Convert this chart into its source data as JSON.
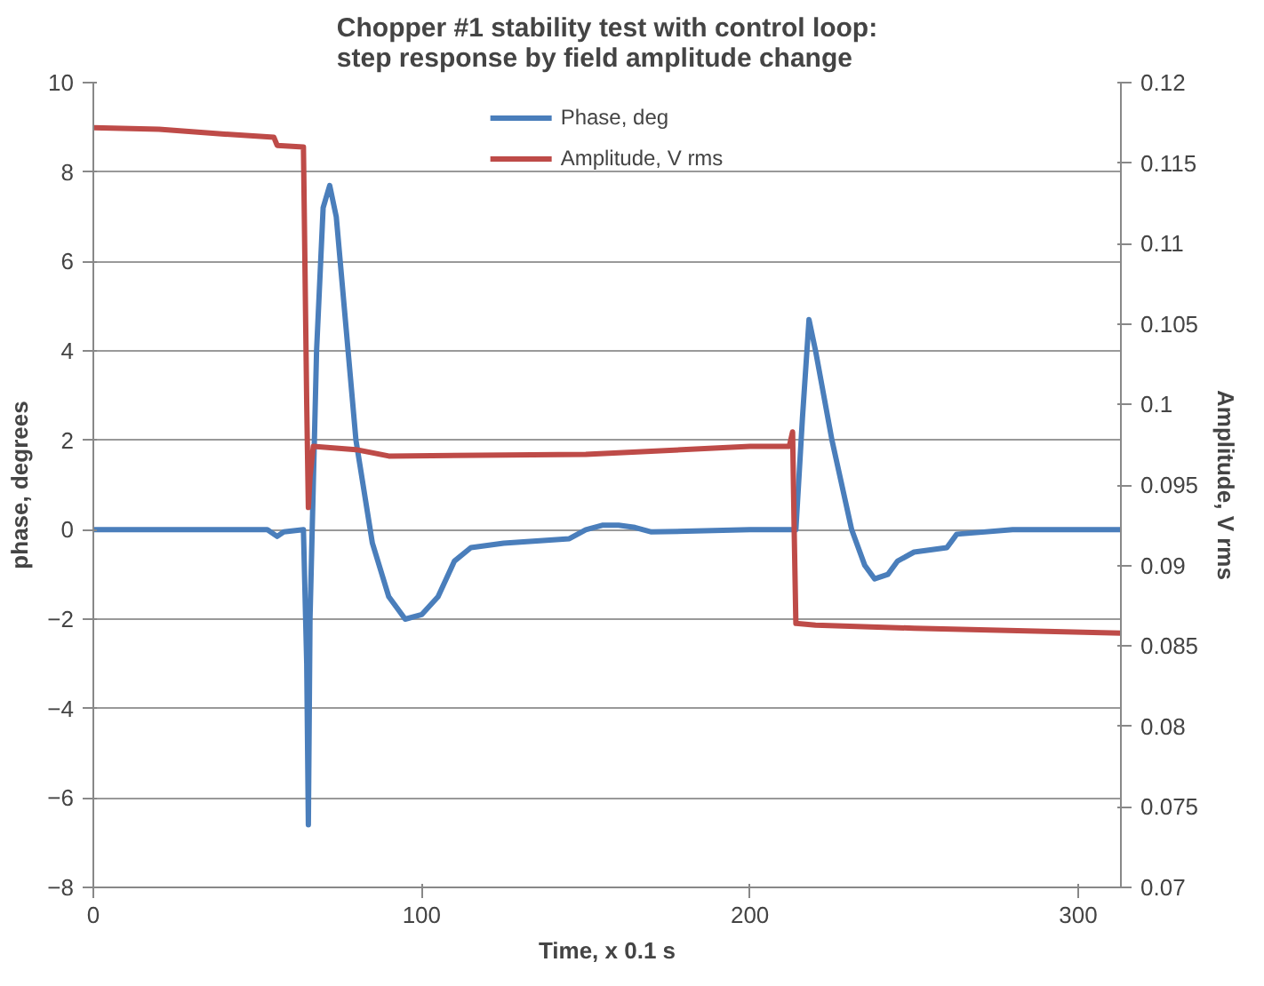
{
  "chart_data": {
    "type": "line",
    "title": "Chopper #1 stability test with control loop:\nstep response by field amplitude change",
    "xlabel": "Time, x 0.1 s",
    "ylabel": "phase, degrees",
    "y2label": "Amplitude, V rms",
    "xlim": [
      0,
      313
    ],
    "xticks": [
      0,
      100,
      200,
      300
    ],
    "ylim": [
      -8,
      10
    ],
    "yticks": [
      -8,
      -6,
      -4,
      -2,
      0,
      2,
      4,
      6,
      8,
      10
    ],
    "y2lim": [
      0.07,
      0.12
    ],
    "y2ticks": [
      0.07,
      0.075,
      0.08,
      0.085,
      0.09,
      0.095,
      0.1,
      0.105,
      0.11,
      0.115,
      0.12
    ],
    "grid": "y",
    "legend": "top",
    "marker": "none",
    "line_style": "solid",
    "series": [
      {
        "name": "Phase, deg",
        "color": "#4a7ebb",
        "x": [
          0,
          53,
          56,
          58,
          64,
          65,
          65.5,
          66,
          68,
          70,
          72,
          74,
          77,
          80,
          85,
          90,
          95,
          100,
          105,
          110,
          115,
          125,
          145,
          150,
          155,
          160,
          165,
          170,
          200,
          214,
          216,
          218,
          220,
          225,
          231,
          235,
          238,
          242,
          245,
          250,
          260,
          263,
          280,
          313
        ],
        "values": [
          0,
          0,
          -0.15,
          -0.05,
          0,
          -3,
          -6.6,
          -2,
          4,
          7.2,
          7.7,
          7,
          4.5,
          2,
          -0.3,
          -1.5,
          -2,
          -1.9,
          -1.5,
          -0.7,
          -0.4,
          -0.3,
          -0.2,
          0,
          0.1,
          0.1,
          0.05,
          -0.05,
          0,
          0,
          2.5,
          4.7,
          4,
          2,
          0,
          -0.8,
          -1.1,
          -1,
          -0.7,
          -0.5,
          -0.4,
          -0.1,
          0,
          0
        ]
      },
      {
        "name": "Amplitude, V rms",
        "color": "#be4b48",
        "axis": "y2",
        "x": [
          0,
          20,
          40,
          55,
          56,
          64,
          65,
          65.5,
          66,
          67,
          80,
          90,
          150,
          200,
          212,
          213,
          213.5,
          214,
          220,
          250,
          313
        ],
        "values": [
          0.1172,
          0.1171,
          0.1168,
          0.1166,
          0.1161,
          0.116,
          0.1,
          0.0936,
          0.0955,
          0.0974,
          0.0972,
          0.0968,
          0.0969,
          0.0974,
          0.0974,
          0.0983,
          0.092,
          0.0864,
          0.0863,
          0.0861,
          0.0858
        ]
      }
    ]
  }
}
